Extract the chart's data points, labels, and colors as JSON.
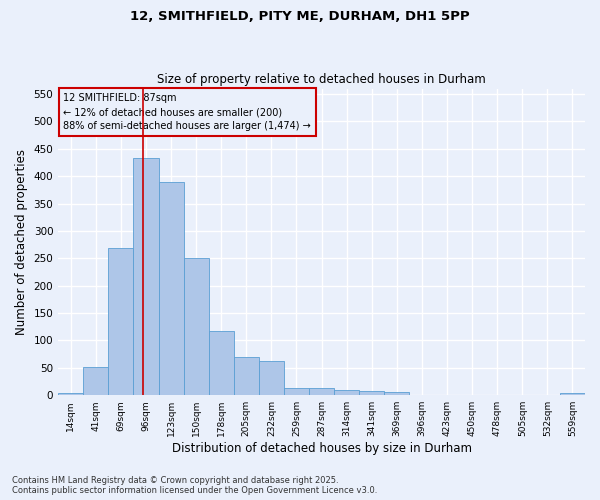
{
  "title_line1": "12, SMITHFIELD, PITY ME, DURHAM, DH1 5PP",
  "title_line2": "Size of property relative to detached houses in Durham",
  "xlabel": "Distribution of detached houses by size in Durham",
  "ylabel": "Number of detached properties",
  "footer_line1": "Contains HM Land Registry data © Crown copyright and database right 2025.",
  "footer_line2": "Contains public sector information licensed under the Open Government Licence v3.0.",
  "categories": [
    "14sqm",
    "41sqm",
    "69sqm",
    "96sqm",
    "123sqm",
    "150sqm",
    "178sqm",
    "205sqm",
    "232sqm",
    "259sqm",
    "287sqm",
    "314sqm",
    "341sqm",
    "369sqm",
    "396sqm",
    "423sqm",
    "450sqm",
    "478sqm",
    "505sqm",
    "532sqm",
    "559sqm"
  ],
  "values": [
    4,
    51,
    268,
    433,
    390,
    250,
    117,
    70,
    62,
    14,
    14,
    9,
    8,
    6,
    0,
    0,
    0,
    1,
    0,
    0,
    4
  ],
  "bar_color": "#aec6e8",
  "bar_edge_color": "#5a9fd4",
  "background_color": "#eaf0fb",
  "grid_color": "#ffffff",
  "vline_x_index": 2.87,
  "vline_color": "#cc0000",
  "annotation_text": "12 SMITHFIELD: 87sqm\n← 12% of detached houses are smaller (200)\n88% of semi-detached houses are larger (1,474) →",
  "annotation_box_color": "#cc0000",
  "ylim": [
    0,
    560
  ],
  "yticks": [
    0,
    50,
    100,
    150,
    200,
    250,
    300,
    350,
    400,
    450,
    500,
    550
  ]
}
